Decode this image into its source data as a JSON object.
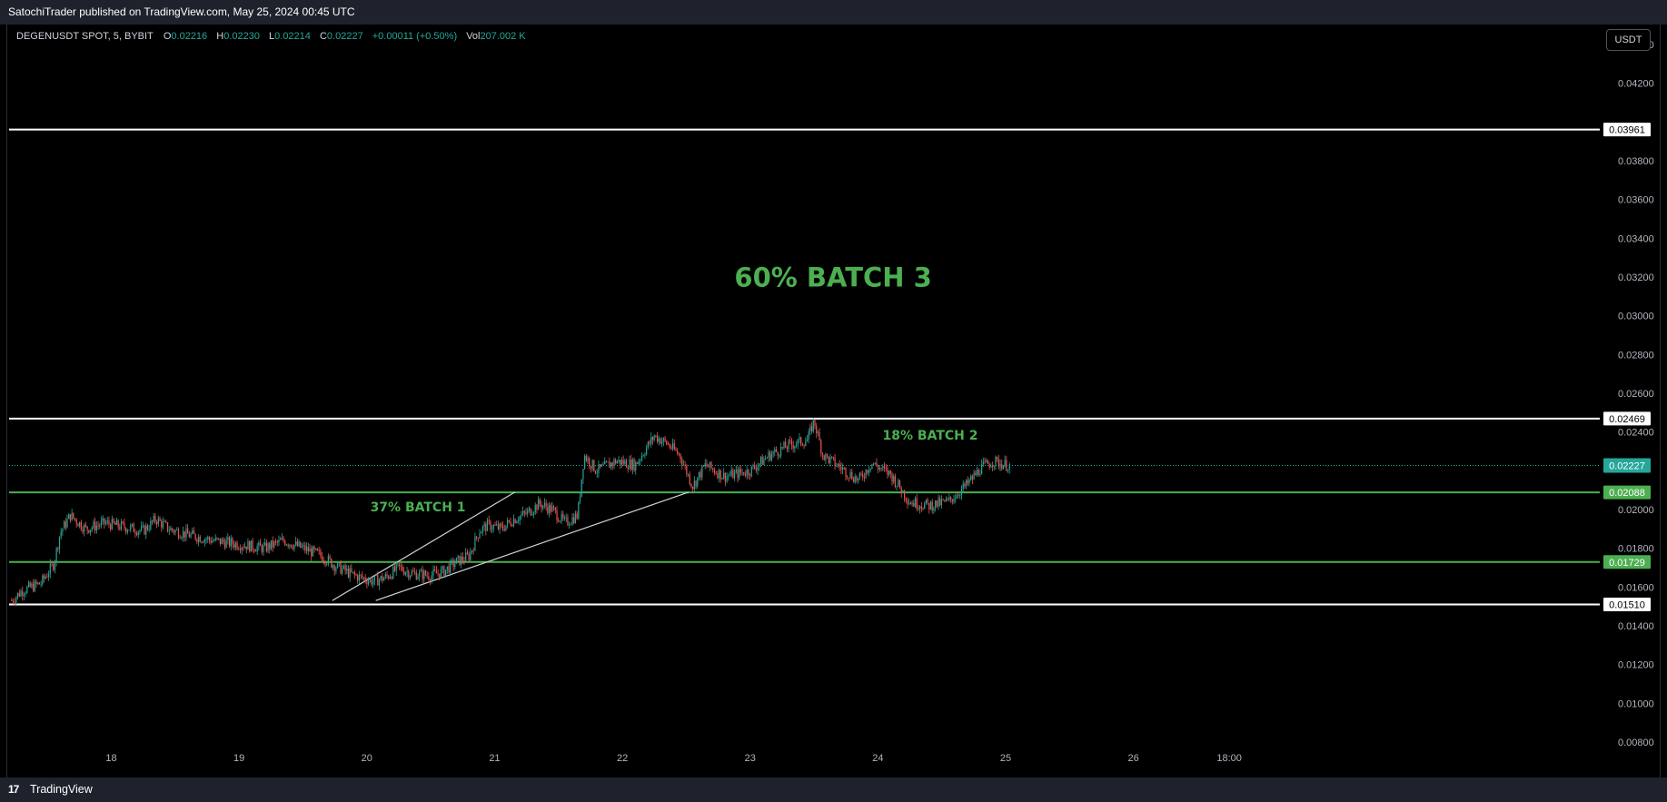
{
  "header": {
    "published": "SatochiTrader published on TradingView.com, May 25, 2024 00:45 UTC"
  },
  "legend": {
    "symbol": "DEGENUSDT SPOT, 5, BYBIT",
    "open_label": "O",
    "open": "0.02216",
    "high_label": "H",
    "high": "0.02230",
    "low_label": "L",
    "low": "0.02214",
    "close_label": "C",
    "close": "0.02227",
    "change": "+0.00011 (+0.50%)",
    "vol_label": "Vol",
    "vol": "207.002 K"
  },
  "currency_button": "USDT",
  "footer": {
    "logo": "17",
    "brand": "TradingView"
  },
  "colors": {
    "up": "#26a69a",
    "down": "#ef5350",
    "green_line": "#4caf50",
    "annotation": "#4caf50",
    "white_line": "#ffffff",
    "background": "#000000"
  },
  "chart_data": {
    "type": "candlestick",
    "y_axis": {
      "range": [
        0.0072,
        0.0455
      ],
      "ticks": [
        "0.04400",
        "0.04200",
        "0.03800",
        "0.03600",
        "0.03400",
        "0.03200",
        "0.03000",
        "0.02800",
        "0.02600",
        "0.02400",
        "0.02000",
        "0.01800",
        "0.01600",
        "0.01400",
        "0.01200",
        "0.01000",
        "0.00800"
      ]
    },
    "x_axis": {
      "range": [
        17.2,
        29.65
      ],
      "ticks": [
        {
          "label": "18",
          "x": 18
        },
        {
          "label": "19",
          "x": 19
        },
        {
          "label": "20",
          "x": 20
        },
        {
          "label": "21",
          "x": 21
        },
        {
          "label": "22",
          "x": 22
        },
        {
          "label": "23",
          "x": 23
        },
        {
          "label": "24",
          "x": 24
        },
        {
          "label": "25",
          "x": 25
        },
        {
          "label": "26",
          "x": 26
        },
        {
          "label": "18:00",
          "x": 26.75
        }
      ]
    },
    "price_path": [
      [
        17.22,
        0.0153
      ],
      [
        17.3,
        0.0158
      ],
      [
        17.45,
        0.0162
      ],
      [
        17.55,
        0.0172
      ],
      [
        17.6,
        0.0188
      ],
      [
        17.68,
        0.0197
      ],
      [
        17.8,
        0.019
      ],
      [
        17.95,
        0.0193
      ],
      [
        18.1,
        0.0191
      ],
      [
        18.25,
        0.0189
      ],
      [
        18.35,
        0.0195
      ],
      [
        18.45,
        0.019
      ],
      [
        18.6,
        0.0187
      ],
      [
        18.8,
        0.0184
      ],
      [
        19.0,
        0.0182
      ],
      [
        19.2,
        0.018
      ],
      [
        19.35,
        0.0184
      ],
      [
        19.5,
        0.018
      ],
      [
        19.65,
        0.0176
      ],
      [
        19.75,
        0.0171
      ],
      [
        19.9,
        0.0166
      ],
      [
        20.05,
        0.0163
      ],
      [
        20.15,
        0.0165
      ],
      [
        20.25,
        0.017
      ],
      [
        20.35,
        0.0167
      ],
      [
        20.5,
        0.0166
      ],
      [
        20.6,
        0.0168
      ],
      [
        20.7,
        0.0173
      ],
      [
        20.8,
        0.0176
      ],
      [
        20.88,
        0.0189
      ],
      [
        20.95,
        0.0192
      ],
      [
        21.05,
        0.019
      ],
      [
        21.15,
        0.0195
      ],
      [
        21.25,
        0.0198
      ],
      [
        21.35,
        0.0203
      ],
      [
        21.45,
        0.02
      ],
      [
        21.55,
        0.0193
      ],
      [
        21.65,
        0.0197
      ],
      [
        21.7,
        0.0228
      ],
      [
        21.8,
        0.022
      ],
      [
        21.95,
        0.0225
      ],
      [
        22.1,
        0.0223
      ],
      [
        22.25,
        0.0238
      ],
      [
        22.35,
        0.0234
      ],
      [
        22.45,
        0.0228
      ],
      [
        22.55,
        0.0212
      ],
      [
        22.65,
        0.0223
      ],
      [
        22.8,
        0.0217
      ],
      [
        23.0,
        0.022
      ],
      [
        23.15,
        0.0228
      ],
      [
        23.3,
        0.0233
      ],
      [
        23.45,
        0.0236
      ],
      [
        23.5,
        0.0246
      ],
      [
        23.57,
        0.0228
      ],
      [
        23.7,
        0.0222
      ],
      [
        23.85,
        0.0215
      ],
      [
        23.95,
        0.0224
      ],
      [
        24.1,
        0.0218
      ],
      [
        24.25,
        0.0204
      ],
      [
        24.4,
        0.0202
      ],
      [
        24.55,
        0.0204
      ],
      [
        24.7,
        0.0213
      ],
      [
        24.8,
        0.0221
      ],
      [
        24.9,
        0.0225
      ],
      [
        25.0,
        0.0223
      ],
      [
        25.03,
        0.02227
      ]
    ],
    "horizontal_levels": [
      {
        "value": 0.03961,
        "label": "0.03961",
        "color": "#ffffff"
      },
      {
        "value": 0.02469,
        "label": "0.02469",
        "color": "#ffffff"
      },
      {
        "value": 0.02088,
        "label": "0.02088",
        "color": "#4caf50"
      },
      {
        "value": 0.01729,
        "label": "0.01729",
        "color": "#4caf50"
      },
      {
        "value": 0.0151,
        "label": "0.01510",
        "color": "#ffffff"
      }
    ],
    "last_price": {
      "value": 0.02227,
      "label": "0.02227",
      "color": "#26a69a"
    },
    "trendlines": [
      {
        "x1": 19.73,
        "y1": 0.0153,
        "x2": 21.16,
        "y2": 0.0209
      },
      {
        "x1": 20.07,
        "y1": 0.0153,
        "x2": 22.52,
        "y2": 0.0209
      }
    ],
    "annotations": [
      {
        "text": "60% BATCH 3",
        "x": 23.65,
        "y": 0.0315,
        "size": "large"
      },
      {
        "text": "37% BATCH 1",
        "x": 20.4,
        "y": 0.0199,
        "size": "small"
      },
      {
        "text": "18% BATCH 2",
        "x": 24.41,
        "y": 0.0236,
        "size": "small"
      }
    ]
  }
}
